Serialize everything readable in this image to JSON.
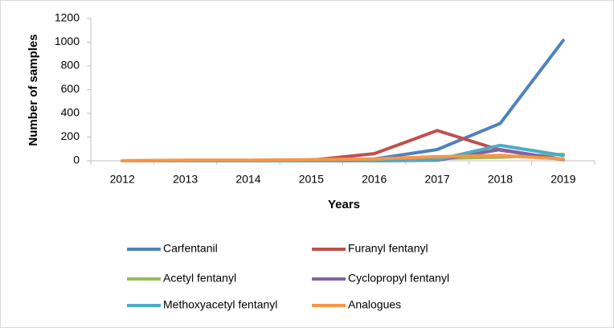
{
  "chart_data": {
    "type": "line",
    "x_label": "Years",
    "y_label": "Number of samples",
    "categories": [
      "2012",
      "2013",
      "2014",
      "2015",
      "2016",
      "2017",
      "2018",
      "2019"
    ],
    "ylim": [
      0,
      1200
    ],
    "yticks": [
      0,
      200,
      400,
      600,
      800,
      1000,
      1200
    ],
    "series": [
      {
        "name": "Carfentanil",
        "color": "#4f81bd",
        "values": [
          0,
          2,
          3,
          5,
          15,
          95,
          315,
          1015
        ]
      },
      {
        "name": "Furanyl fentanyl",
        "color": "#c0504d",
        "values": [
          0,
          2,
          3,
          5,
          60,
          255,
          90,
          10
        ]
      },
      {
        "name": "Acetyl fentanyl",
        "color": "#9bbb59",
        "values": [
          0,
          2,
          3,
          5,
          10,
          20,
          30,
          55
        ]
      },
      {
        "name": "Cyclopropyl fentanyl",
        "color": "#8064a2",
        "values": [
          0,
          0,
          0,
          0,
          0,
          5,
          95,
          10
        ]
      },
      {
        "name": "Methoxyacetyl fentanyl",
        "color": "#4bacc6",
        "values": [
          0,
          0,
          0,
          0,
          0,
          10,
          130,
          45
        ]
      },
      {
        "name": "Analogues",
        "color": "#f79646",
        "values": [
          0,
          5,
          5,
          10,
          15,
          35,
          45,
          15
        ]
      }
    ]
  }
}
